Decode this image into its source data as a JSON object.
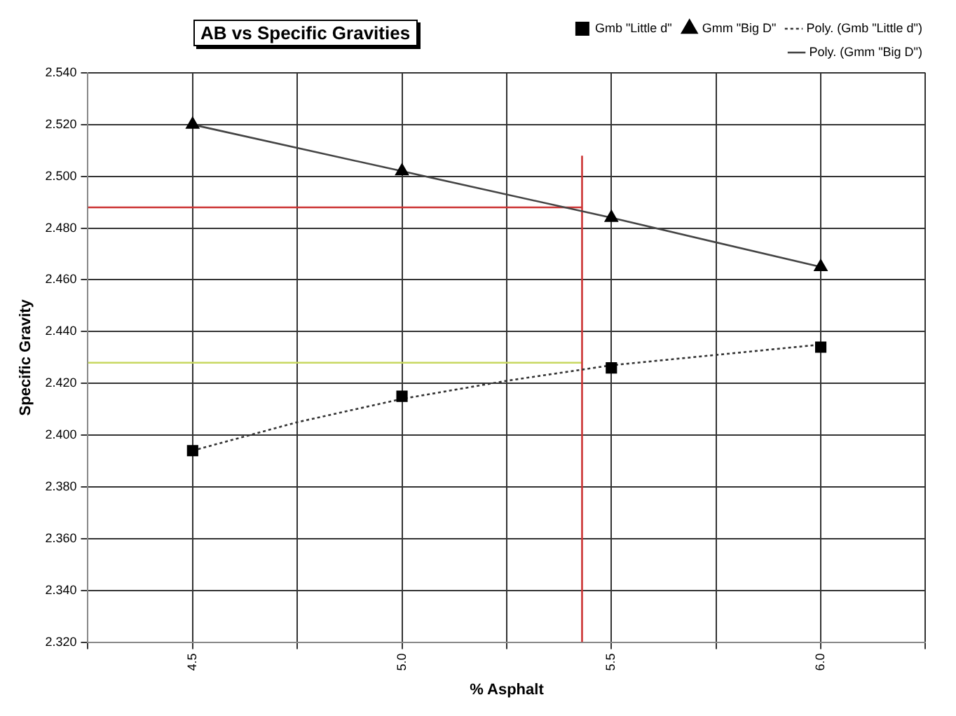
{
  "chart_data": {
    "type": "scatter",
    "title": "AB vs Specific Gravities",
    "xlabel": "% Asphalt",
    "ylabel": "Specific Gravity",
    "xlim": [
      4.25,
      6.25
    ],
    "xticks": [
      {
        "value": 4.25,
        "label": null
      },
      {
        "value": 4.5,
        "label": "4.5"
      },
      {
        "value": 4.75,
        "label": null
      },
      {
        "value": 5,
        "label": "5.0"
      },
      {
        "value": 5.25,
        "label": null
      },
      {
        "value": 5.5,
        "label": "5.5"
      },
      {
        "value": 5.75,
        "label": null
      },
      {
        "value": 6,
        "label": "6.0"
      },
      {
        "value": 6.25,
        "label": null
      }
    ],
    "ylim": [
      2.32,
      2.54
    ],
    "yticks": [
      {
        "value": 2.32,
        "label": "2.320"
      },
      {
        "value": 2.34,
        "label": "2.340"
      },
      {
        "value": 2.36,
        "label": "2.360"
      },
      {
        "value": 2.38,
        "label": "2.380"
      },
      {
        "value": 2.4,
        "label": "2.400"
      },
      {
        "value": 2.42,
        "label": "2.420"
      },
      {
        "value": 2.44,
        "label": "2.440"
      },
      {
        "value": 2.46,
        "label": "2.460"
      },
      {
        "value": 2.48,
        "label": "2.480"
      },
      {
        "value": 2.5,
        "label": "2.500"
      },
      {
        "value": 2.52,
        "label": "2.520"
      },
      {
        "value": 2.54,
        "label": "2.540"
      }
    ],
    "grid": true,
    "legend": "top right",
    "series": [
      {
        "name": "Gmb \"Little d\"",
        "type": "scatter",
        "marker": "square",
        "color": "#000000",
        "x": [
          4.5,
          5,
          5.5,
          6
        ],
        "values": [
          2.394,
          2.415,
          2.426,
          2.434
        ]
      },
      {
        "name": "Gmm \"Big D\"",
        "type": "scatter",
        "marker": "triangle",
        "color": "#000000",
        "x": [
          4.5,
          5,
          5.5,
          6
        ],
        "values": [
          2.52,
          2.502,
          2.484,
          2.465
        ]
      },
      {
        "name": "Poly. (Gmb \"Little d\")",
        "type": "line",
        "marker": "none",
        "line_style": "dotted",
        "color": "#333333",
        "x": [
          4.5,
          4.75,
          5,
          5.25,
          5.5,
          5.75,
          6
        ],
        "values": [
          2.394,
          2.405,
          2.414,
          2.421,
          2.427,
          2.431,
          2.435
        ]
      },
      {
        "name": "Poly. (Gmm \"Big D\")",
        "type": "line",
        "marker": "none",
        "line_style": "solid",
        "color": "#444444",
        "x": [
          4.5,
          5,
          5.5,
          6
        ],
        "values": [
          2.52,
          2.502,
          2.484,
          2.465
        ]
      },
      {
        "type": "line",
        "marker": "none",
        "line_style": "solid",
        "color": "#cc3333",
        "x": [
          4.25,
          5.43
        ],
        "values": [
          2.488,
          2.488
        ]
      },
      {
        "type": "line",
        "marker": "none",
        "line_style": "solid",
        "color": "#cc3333",
        "x": [
          5.43,
          5.43
        ],
        "values": [
          2.32,
          2.508
        ]
      },
      {
        "type": "line",
        "marker": "none",
        "line_style": "solid",
        "color": "#c8d860",
        "x": [
          4.25,
          5.43
        ],
        "values": [
          2.428,
          2.428
        ]
      }
    ]
  }
}
